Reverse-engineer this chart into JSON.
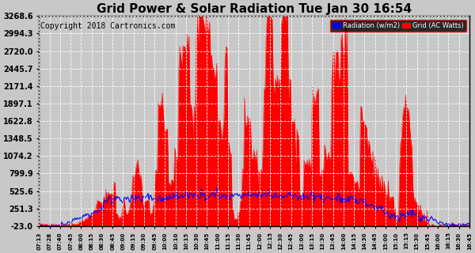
{
  "title": "Grid Power & Solar Radiation Tue Jan 30 16:54",
  "copyright": "Copyright 2018 Cartronics.com",
  "legend_radiation": "Radiation (w/m2)",
  "legend_grid": "Grid (AC Watts)",
  "yticks": [
    -23.0,
    251.3,
    525.6,
    799.9,
    1074.2,
    1348.5,
    1622.8,
    1897.1,
    2171.4,
    2445.7,
    2720.0,
    2994.3,
    3268.6
  ],
  "ymin": -23.0,
  "ymax": 3268.6,
  "background_color": "#c8c8c8",
  "plot_bg_color": "#c8c8c8",
  "grid_color": "#ffffff",
  "red_color": "#ff0000",
  "blue_color": "#0000ff",
  "title_fontsize": 11,
  "copyright_fontsize": 7,
  "xtick_labels": [
    "07:13",
    "07:28",
    "07:40",
    "07:45",
    "08:00",
    "08:15",
    "08:30",
    "08:45",
    "09:00",
    "09:15",
    "09:30",
    "09:45",
    "10:00",
    "10:10",
    "10:15",
    "10:30",
    "10:45",
    "11:00",
    "11:15",
    "11:30",
    "11:45",
    "12:00",
    "12:15",
    "12:30",
    "12:45",
    "13:00",
    "13:15",
    "13:30",
    "13:45",
    "14:00",
    "14:15",
    "14:30",
    "14:45",
    "15:00",
    "15:10",
    "15:15",
    "15:30",
    "15:45",
    "16:00",
    "16:15",
    "16:30",
    "16:45"
  ]
}
